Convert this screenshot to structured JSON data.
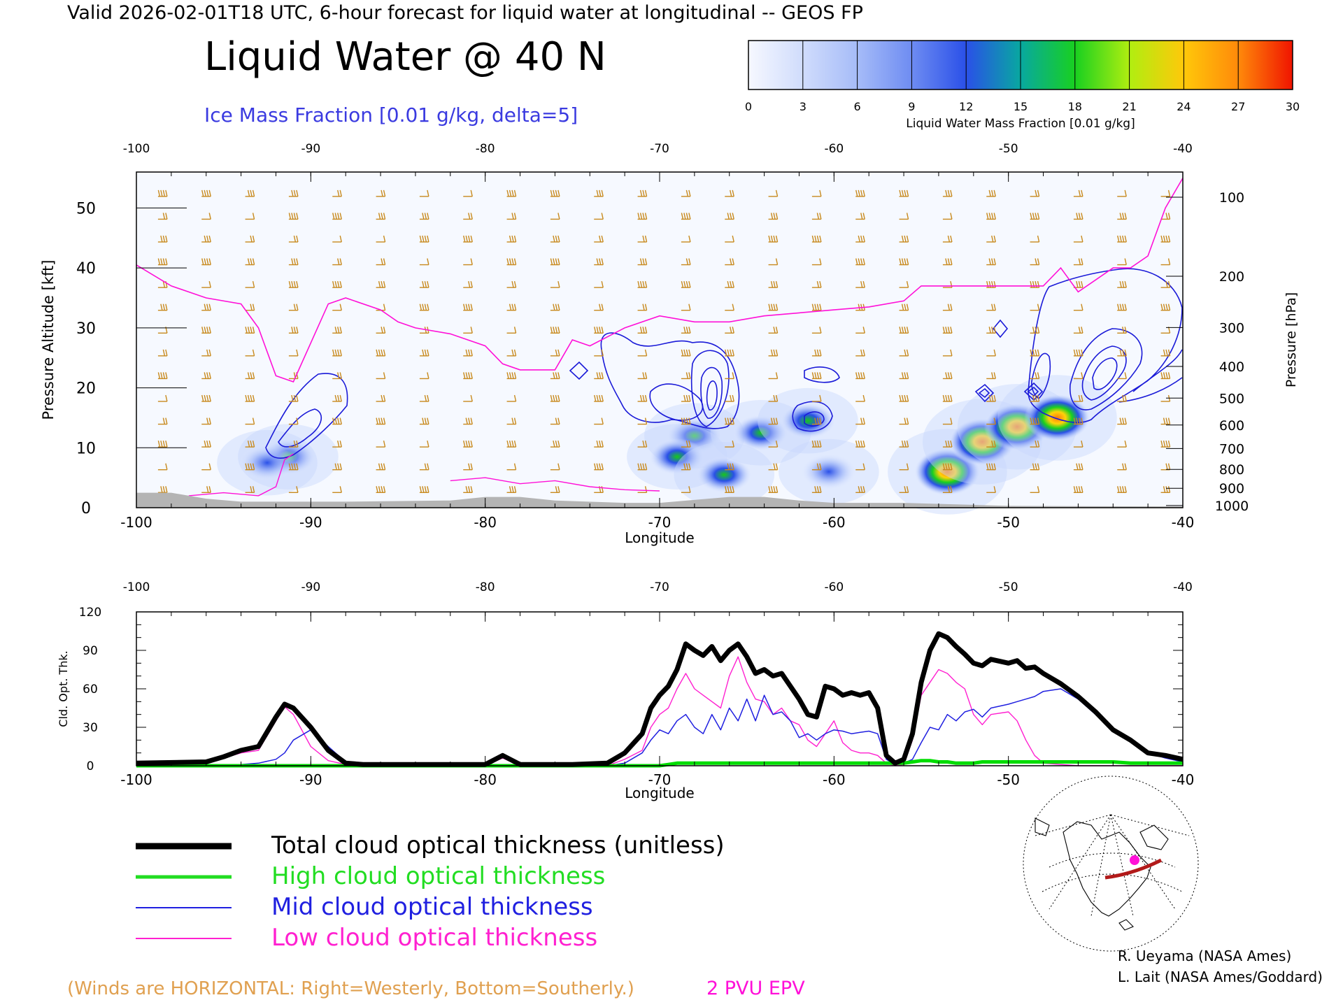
{
  "header": {
    "valid_line": "Valid 2026-02-01T18 UTC, 6-hour forecast for liquid water at longitudinal -- GEOS FP",
    "main_title": "Liquid Water @ 40 N",
    "ice_label": "Ice Mass Fraction [0.01 g/kg, delta=5]"
  },
  "colorbar": {
    "ticks": [
      "0",
      "3",
      "6",
      "9",
      "12",
      "15",
      "18",
      "21",
      "24",
      "27",
      "30"
    ],
    "label": "Liquid Water Mass Fraction [0.01 g/kg]",
    "colors": [
      "#f4f6ff",
      "#c8d6fc",
      "#9ab2f8",
      "#6a88f2",
      "#2e4fe8",
      "#0aa0a8",
      "#16c81a",
      "#60e614",
      "#f2f414",
      "#ffb40a",
      "#ff7a0a",
      "#f01400"
    ]
  },
  "chart_data": [
    {
      "type": "heatmap",
      "title": "Liquid Water @ 40 N",
      "xlabel": "Longitude",
      "ylabel": "Pressure Altitude [kft]",
      "ylabel_right": "Pressure [hPa]",
      "x_ticks": [
        "-100",
        "-90",
        "-80",
        "-70",
        "-60",
        "-50",
        "-40"
      ],
      "y_ticks": [
        "0",
        "10",
        "20",
        "30",
        "40",
        "50"
      ],
      "pressure_ticks": [
        "100",
        "200",
        "300",
        "400",
        "500",
        "600",
        "700",
        "800",
        "900",
        "1000"
      ],
      "xlim": [
        -100,
        -40
      ],
      "ylim": [
        0,
        56
      ],
      "blobs": [
        {
          "lon": -91.3,
          "alt": 8.5,
          "value": 16
        },
        {
          "lon": -92.5,
          "alt": 7.5,
          "value": 9
        },
        {
          "lon": -68.0,
          "alt": 12.0,
          "value": 16
        },
        {
          "lon": -69.0,
          "alt": 8.5,
          "value": 12
        },
        {
          "lon": -66.3,
          "alt": 5.5,
          "value": 14
        },
        {
          "lon": -64.2,
          "alt": 12.5,
          "value": 13
        },
        {
          "lon": -61.5,
          "alt": 14.5,
          "value": 12
        },
        {
          "lon": -60.3,
          "alt": 6.0,
          "value": 8
        },
        {
          "lon": -53.5,
          "alt": 6.0,
          "value": 22
        },
        {
          "lon": -51.5,
          "alt": 11.0,
          "value": 25
        },
        {
          "lon": -49.5,
          "alt": 13.5,
          "value": 26
        },
        {
          "lon": -47.2,
          "alt": 15.0,
          "value": 27
        }
      ],
      "epv_2pvu": {
        "lon": [
          -100,
          -98,
          -96,
          -94,
          -93,
          -92,
          -91,
          -89,
          -88,
          -86,
          -85,
          -84,
          -82,
          -80,
          -79,
          -78,
          -76,
          -75,
          -74,
          -72,
          -70,
          -68,
          -66,
          -64,
          -62,
          -60,
          -58,
          -56,
          -55,
          -54,
          -52,
          -50,
          -48,
          -47,
          -46,
          -45,
          -44,
          -43,
          -42,
          -41,
          -40
        ],
        "alt": [
          40.5,
          37,
          35,
          34,
          30,
          22,
          21,
          34,
          35,
          33,
          31,
          30,
          29,
          27,
          24,
          23,
          23,
          28,
          27,
          30,
          32,
          31,
          31,
          32,
          32.5,
          33,
          33.5,
          34.5,
          37,
          37,
          37,
          37,
          37,
          40,
          36,
          38,
          40,
          40,
          42,
          50,
          55
        ]
      },
      "epv_low_segments": [
        {
          "lon": [
            -97,
            -95,
            -93,
            -92,
            -91.5,
            -91
          ],
          "alt": [
            2,
            2.5,
            2,
            3.5,
            8,
            9
          ]
        },
        {
          "lon": [
            -82,
            -80,
            -78,
            -76,
            -74,
            -72,
            -70
          ],
          "alt": [
            4.5,
            5,
            4,
            4.5,
            3.5,
            3,
            2.8
          ]
        }
      ],
      "terrain": {
        "lon": [
          -100,
          -98,
          -96,
          -94,
          -90,
          -88,
          -82,
          -80,
          -78,
          -76,
          -72,
          -70,
          -66,
          -64,
          -62,
          -60,
          -56,
          -50,
          -40
        ],
        "alt": [
          2.5,
          2.5,
          1.5,
          1.0,
          1.0,
          1.0,
          1.2,
          1.8,
          1.8,
          1.2,
          0.8,
          0.8,
          1.8,
          1.8,
          1.2,
          0.8,
          0.8,
          0.3,
          0.2
        ]
      }
    },
    {
      "type": "line",
      "xlabel": "Longitude",
      "ylabel": "Cld. Opt. Thk.",
      "x_ticks": [
        "-100",
        "-90",
        "-80",
        "-70",
        "-60",
        "-50",
        "-40"
      ],
      "y_ticks": [
        "0",
        "30",
        "60",
        "90",
        "120"
      ],
      "xlim": [
        -100,
        -40
      ],
      "ylim": [
        0,
        120
      ],
      "x": [
        -100,
        -96,
        -95,
        -94,
        -93,
        -92,
        -91.5,
        -91,
        -90,
        -89,
        -88,
        -87,
        -84,
        -81,
        -80,
        -79,
        -78,
        -75,
        -73,
        -72,
        -71,
        -70.5,
        -70,
        -69.5,
        -69,
        -68.5,
        -68,
        -67.5,
        -67,
        -66.5,
        -66,
        -65.5,
        -65,
        -64.5,
        -64,
        -63.5,
        -63,
        -62.5,
        -62,
        -61.5,
        -61,
        -60.5,
        -60,
        -59.5,
        -59,
        -58.5,
        -58,
        -57.5,
        -57,
        -56.5,
        -56,
        -55.5,
        -55,
        -54.5,
        -54,
        -53.5,
        -53,
        -52.5,
        -52,
        -51.5,
        -51,
        -50,
        -49.5,
        -49,
        -48.5,
        -48,
        -47,
        -46,
        -45,
        -44,
        -43,
        -42,
        -41,
        -40
      ],
      "series": [
        {
          "name": "Total cloud optical thickness (unitless)",
          "color": "#000000",
          "values": [
            2,
            3,
            7,
            12,
            15,
            38,
            48,
            45,
            30,
            12,
            2,
            1,
            1,
            1,
            1,
            8,
            1,
            1,
            2,
            10,
            25,
            45,
            55,
            62,
            75,
            95,
            90,
            86,
            93,
            82,
            90,
            95,
            85,
            72,
            75,
            70,
            72,
            62,
            52,
            40,
            38,
            62,
            60,
            55,
            57,
            55,
            57,
            45,
            8,
            2,
            5,
            25,
            65,
            90,
            103,
            100,
            93,
            87,
            80,
            78,
            83,
            80,
            82,
            76,
            77,
            72,
            64,
            54,
            42,
            28,
            20,
            10,
            8,
            5
          ]
        },
        {
          "name": "High cloud optical thickness",
          "color": "#00dd00",
          "values": [
            0,
            0,
            0,
            0,
            0,
            0,
            0,
            0,
            0,
            0,
            0,
            0,
            0,
            0,
            0,
            0,
            0,
            0,
            0,
            0,
            0,
            0,
            0,
            1,
            2,
            2,
            2,
            2,
            2,
            2,
            2,
            2,
            2,
            2,
            2,
            2,
            2,
            2,
            2,
            2,
            2,
            2,
            2,
            2,
            2,
            2,
            2,
            2,
            2,
            2,
            2,
            3,
            4,
            4,
            3,
            3,
            2,
            2,
            2,
            3,
            3,
            3,
            3,
            3,
            3,
            3,
            3,
            3,
            3,
            3,
            2,
            2,
            2,
            2
          ]
        },
        {
          "name": "Mid cloud optical thickness",
          "color": "#2020e0",
          "values": [
            0,
            0,
            0,
            1,
            2,
            5,
            10,
            20,
            28,
            15,
            3,
            1,
            0,
            0,
            0,
            0,
            0,
            0,
            0,
            2,
            10,
            20,
            28,
            25,
            35,
            40,
            30,
            25,
            40,
            28,
            45,
            35,
            52,
            35,
            55,
            40,
            42,
            35,
            22,
            25,
            20,
            25,
            28,
            27,
            25,
            26,
            27,
            25,
            5,
            1,
            2,
            5,
            18,
            30,
            28,
            40,
            35,
            42,
            44,
            38,
            45,
            48,
            50,
            52,
            54,
            58,
            60,
            52,
            40,
            28,
            20,
            10,
            6,
            3
          ]
        },
        {
          "name": "Low cloud optical thickness",
          "color": "#ff20d0",
          "values": [
            1,
            2,
            6,
            10,
            12,
            35,
            46,
            40,
            15,
            4,
            1,
            0,
            0,
            0,
            0,
            6,
            0,
            0,
            0,
            5,
            12,
            30,
            40,
            45,
            60,
            72,
            60,
            55,
            50,
            45,
            70,
            85,
            65,
            52,
            50,
            40,
            45,
            35,
            32,
            20,
            15,
            25,
            35,
            18,
            12,
            10,
            10,
            8,
            2,
            0,
            1,
            20,
            55,
            65,
            75,
            72,
            65,
            60,
            40,
            32,
            40,
            42,
            35,
            20,
            8,
            2,
            1,
            0,
            0,
            0,
            0,
            0,
            0,
            0
          ]
        }
      ]
    }
  ],
  "legend": {
    "items": [
      {
        "label": "Total cloud optical thickness (unitless)",
        "color": "#000000"
      },
      {
        "label": "High cloud optical thickness",
        "color": "#22dd22"
      },
      {
        "label": "Mid cloud optical thickness",
        "color": "#2020e0"
      },
      {
        "label": "Low cloud optical thickness",
        "color": "#ff20d0"
      }
    ]
  },
  "footer": {
    "winds_note": "(Winds are HORIZONTAL: Right=Westerly, Bottom=Southerly.)",
    "epv_label": "2 PVU EPV",
    "credit_1": "R. Ueyama (NASA Ames)",
    "credit_2": "L. Lait (NASA Ames/Goddard)"
  },
  "colors": {
    "wind_barb": "#c88a1e",
    "epv": "#ff10d8",
    "ice_contour": "#1a1ad8",
    "terrain": "#b4b4b4",
    "winds_note": "#e0a050"
  }
}
